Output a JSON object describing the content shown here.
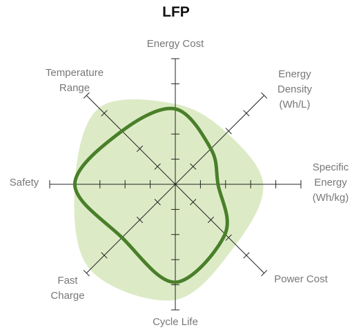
{
  "chart_data": {
    "type": "radar",
    "title": "LFP",
    "categories": [
      "Energy Cost",
      "Energy Density (Wh/L)",
      "Specific Energy (Wh/kg)",
      "Power Cost",
      "Cycle Life",
      "Fast Charge",
      "Safety",
      "Temperature Range"
    ],
    "series": [
      {
        "color": "#dcebc6",
        "fill": true,
        "values": [
          3.2,
          2.9,
          3.5,
          3.4,
          4.6,
          4.8,
          4.0,
          4.3
        ]
      },
      {
        "color": "#4a7f2a",
        "fill": false,
        "values": [
          3.0,
          2.0,
          1.7,
          2.8,
          3.9,
          3.0,
          4.0,
          3.0
        ]
      }
    ],
    "rlim": [
      0,
      5
    ],
    "rticks": [
      1,
      2,
      3,
      4,
      5
    ]
  }
}
